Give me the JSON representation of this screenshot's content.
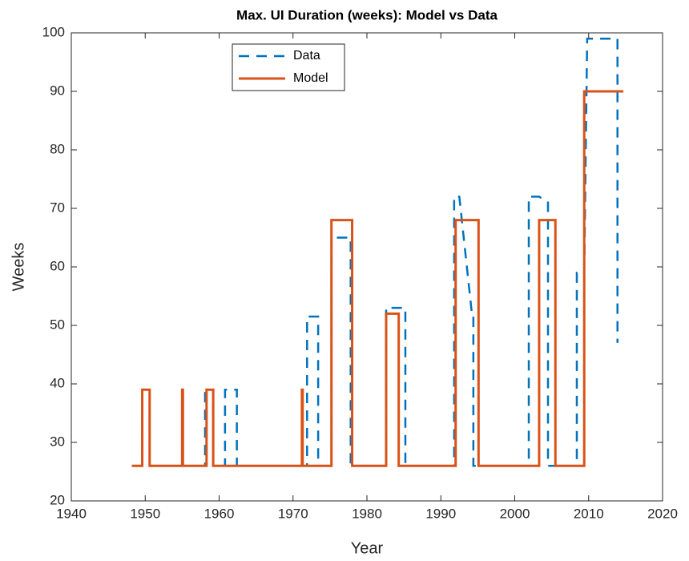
{
  "chart_data": {
    "type": "line",
    "title": "Max. UI Duration (weeks): Model vs Data",
    "x_label": "Year",
    "y_label": "Weeks",
    "xlim": [
      1940,
      2020
    ],
    "xticks": [
      1940,
      1950,
      1960,
      1970,
      1980,
      1990,
      2000,
      2010,
      2020
    ],
    "ylim": [
      20,
      100
    ],
    "yticks": [
      20,
      30,
      40,
      50,
      60,
      70,
      80,
      90,
      100
    ],
    "grid": false,
    "legend_position": "top",
    "series": [
      {
        "name": "Data",
        "color": "#0072bd",
        "dashed": true,
        "x": [
          1948.2,
          1949.6,
          1949.6,
          1950.6,
          1950.6,
          1955.0,
          1955.0,
          1955.1,
          1955.1,
          1958.1,
          1958.1,
          1959.2,
          1959.2,
          1960.8,
          1960.8,
          1962.4,
          1962.4,
          1971.9,
          1971.9,
          1973.4,
          1973.4,
          1975.2,
          1975.2,
          1977.8,
          1977.8,
          1982.6,
          1982.6,
          1985.2,
          1985.2,
          1991.8,
          1991.8,
          1992.5,
          1994.2,
          1994.4,
          1994.4,
          2001.9,
          2001.9,
          2003.3,
          2004.5,
          2004.5,
          2008.4,
          2008.4,
          2009.4,
          2009.8,
          2013.9,
          2013.9
        ],
        "values": [
          26,
          26,
          39,
          39,
          26,
          26,
          39,
          39,
          26,
          26,
          39,
          39,
          26,
          26,
          39,
          39,
          26,
          26,
          51.5,
          51.5,
          26,
          26,
          65,
          65,
          26,
          26,
          53,
          53,
          26,
          26,
          72,
          72,
          52,
          52,
          26,
          26,
          72,
          72,
          71,
          26,
          26,
          59,
          59,
          99,
          99,
          47
        ]
      },
      {
        "name": "Model",
        "color": "#d95319",
        "dashed": false,
        "x": [
          1948.2,
          1949.6,
          1949.6,
          1950.6,
          1950.6,
          1955.0,
          1955.0,
          1955.1,
          1955.1,
          1958.3,
          1958.3,
          1959.2,
          1959.2,
          1971.2,
          1971.2,
          1971.3,
          1971.3,
          1975.2,
          1975.2,
          1978.0,
          1978.0,
          1982.6,
          1982.6,
          1984.3,
          1984.3,
          1992.0,
          1992.0,
          1995.1,
          1995.1,
          2003.3,
          2003.3,
          2005.5,
          2005.5,
          2009.4,
          2009.4,
          2014.7
        ],
        "values": [
          26,
          26,
          39,
          39,
          26,
          26,
          39,
          39,
          26,
          26,
          39,
          39,
          26,
          26,
          39,
          39,
          26,
          26,
          68,
          68,
          26,
          26,
          52,
          52,
          26,
          26,
          68,
          68,
          26,
          26,
          68,
          68,
          26,
          26,
          90,
          90
        ]
      }
    ]
  }
}
